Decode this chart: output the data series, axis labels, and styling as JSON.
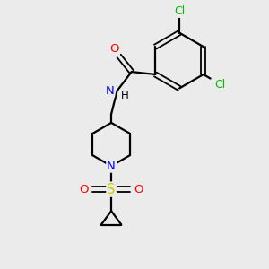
{
  "bg_color": "#ebebeb",
  "bond_color": "#000000",
  "atom_colors": {
    "Cl_top": "#00bb00",
    "Cl_right": "#00bb00",
    "O_carbonyl": "#ff0000",
    "N_amide": "#0000ff",
    "H_amide": "#000000",
    "N_piperidine": "#0000ff",
    "S": "#cccc00",
    "O_sulfonyl1": "#ff0000",
    "O_sulfonyl2": "#ff0000"
  },
  "figsize": [
    3.0,
    3.0
  ],
  "dpi": 100,
  "xlim": [
    0,
    10
  ],
  "ylim": [
    0,
    10
  ]
}
